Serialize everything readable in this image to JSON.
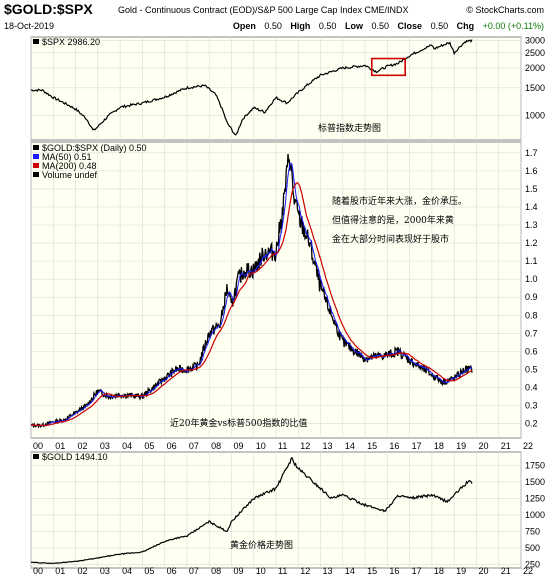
{
  "header": {
    "symbol": "$GOLD:$SPX",
    "subtitle": "Gold - Continuous Contract (EOD)/S&P 500 Large Cap Index  CME/INDX",
    "logo": "© StockCharts.com",
    "date": "18-Oct-2019",
    "ohlc": {
      "open_label": "Open",
      "open": "0.50",
      "high_label": "High",
      "high": "0.50",
      "low_label": "Low",
      "low": "0.50",
      "close_label": "Close",
      "close": "0.50",
      "chg_label": "Chg",
      "chg": "+0.00 (+0.11%)"
    },
    "colors": {
      "up": "#0a7a0a",
      "annotation": "#e00000",
      "highlight_box": "#cc0000",
      "ma200": "#cc0000",
      "ma50": "#1a1aff"
    }
  },
  "chart_data": [
    {
      "type": "line",
      "legend": "$SPX 2986.20",
      "annotation": "标普指数走势图",
      "ylim": [
        700,
        3150
      ],
      "yticks": [
        1000,
        1500,
        2000,
        2500,
        3000
      ],
      "x": [
        2000,
        2000.5,
        2001,
        2001.5,
        2002,
        2002.5,
        2002.8,
        2003,
        2003.5,
        2004,
        2005,
        2006,
        2007,
        2007.8,
        2008.3,
        2008.8,
        2009.2,
        2009.5,
        2010,
        2010.5,
        2011,
        2011.5,
        2012,
        2013,
        2014,
        2015,
        2015.5,
        2016,
        2016.5,
        2017,
        2018,
        2018.1,
        2018.5,
        2018.8,
        2019,
        2019.5,
        2019.8
      ],
      "y": [
        1450,
        1450,
        1300,
        1200,
        1100,
        950,
        800,
        850,
        1000,
        1130,
        1200,
        1310,
        1500,
        1550,
        1350,
        900,
        740,
        950,
        1120,
        1050,
        1300,
        1200,
        1400,
        1800,
        2000,
        2080,
        1900,
        2050,
        2150,
        2400,
        2800,
        2650,
        2800,
        2900,
        2500,
        2950,
        2990
      ],
      "highlight_box_x": [
        2015.3,
        2016.8
      ],
      "highlight_box_y": [
        1800,
        2300
      ]
    },
    {
      "type": "line",
      "legend": [
        "$GOLD:$SPX (Daily) 0.50",
        "MA(50) 0.51",
        "MA(200) 0.48",
        "Volume undef"
      ],
      "series": [
        {
          "name": "$GOLD:$SPX (Daily) 0.50",
          "color": "#000000"
        },
        {
          "name": "MA(50) 0.51",
          "color": "#1a1aff"
        },
        {
          "name": "MA(200) 0.48",
          "color": "#cc0000"
        }
      ],
      "ylim": [
        0.12,
        1.76
      ],
      "yticks": [
        0.2,
        0.3,
        0.4,
        0.5,
        0.6,
        0.7,
        0.8,
        0.9,
        1.0,
        1.1,
        1.2,
        1.3,
        1.4,
        1.5,
        1.6,
        1.7
      ],
      "x": [
        2000,
        2000.5,
        2001,
        2001.5,
        2002,
        2002.5,
        2003,
        2003.5,
        2004,
        2005,
        2006,
        2006.5,
        2007,
        2007.5,
        2008,
        2008.5,
        2008.8,
        2009,
        2009.3,
        2009.6,
        2010,
        2010.5,
        2011,
        2011.3,
        2011.6,
        2011.8,
        2012,
        2012.5,
        2013,
        2013.5,
        2014,
        2015,
        2016,
        2016.5,
        2017,
        2018,
        2018.5,
        2019,
        2019.5,
        2019.8
      ],
      "y": [
        0.19,
        0.19,
        0.21,
        0.22,
        0.26,
        0.3,
        0.38,
        0.35,
        0.36,
        0.35,
        0.45,
        0.5,
        0.5,
        0.52,
        0.7,
        0.75,
        0.95,
        0.85,
        1.0,
        1.05,
        1.05,
        1.15,
        1.15,
        1.38,
        1.7,
        1.45,
        1.35,
        1.2,
        0.95,
        0.8,
        0.65,
        0.56,
        0.58,
        0.6,
        0.55,
        0.47,
        0.43,
        0.45,
        0.5,
        0.5
      ],
      "annotations": [
        "随着股市近年来大涨，金价承压。",
        "但值得注意的是，2000年来黄",
        "金在大部分时间表现好于股市"
      ],
      "caption": "近20年黄金vs标普500指数的比值"
    },
    {
      "type": "line",
      "legend": "$GOLD 1494.10",
      "caption": "黄金价格走势图",
      "ylim": [
        200,
        1950
      ],
      "yticks": [
        250,
        500,
        750,
        1000,
        1250,
        1500,
        1750
      ],
      "x": [
        2000,
        2001,
        2002,
        2003,
        2004,
        2005,
        2006,
        2006.5,
        2007,
        2008,
        2008.8,
        2009,
        2010,
        2011,
        2011.7,
        2012,
        2013,
        2013.5,
        2014,
        2015,
        2015.9,
        2016.5,
        2017,
        2018,
        2018.7,
        2019,
        2019.6,
        2019.8
      ],
      "y": [
        285,
        270,
        300,
        350,
        410,
        440,
        600,
        650,
        680,
        900,
        750,
        900,
        1250,
        1400,
        1850,
        1700,
        1400,
        1250,
        1300,
        1150,
        1060,
        1300,
        1250,
        1300,
        1200,
        1300,
        1500,
        1494
      ]
    }
  ],
  "x_axis": {
    "labels": [
      "00",
      "01",
      "02",
      "03",
      "04",
      "05",
      "06",
      "07",
      "08",
      "09",
      "10",
      "11",
      "12",
      "13",
      "14",
      "15",
      "16",
      "17",
      "18",
      "19",
      "20",
      "21",
      "22"
    ]
  }
}
